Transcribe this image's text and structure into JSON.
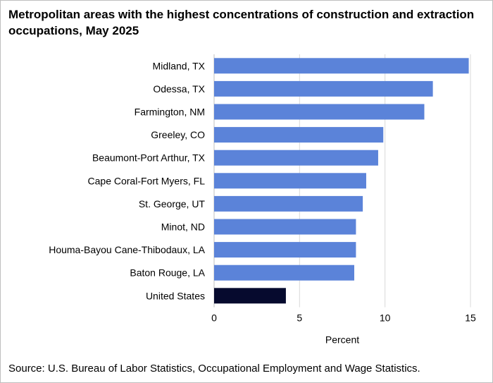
{
  "title": "Metropolitan areas with the highest concentrations of construction and extraction occupations, May 2025",
  "source": "Source: U.S. Bureau of Labor Statistics, Occupational Employment and Wage Statistics.",
  "colors": {
    "metro_bar": "#5b83d9",
    "us_bar": "#060a2e",
    "grid": "#d9d9d9",
    "axis": "#bfbfbf"
  },
  "chart_data": {
    "type": "bar",
    "orientation": "horizontal",
    "title": "Metropolitan areas with the highest concentrations of construction and extraction occupations, May 2025",
    "xlabel": "Percent",
    "ylabel": "",
    "xlim": [
      0,
      15
    ],
    "xticks": [
      0,
      5,
      10,
      15
    ],
    "grid": true,
    "categories": [
      "Midland, TX",
      "Odessa, TX",
      "Farmington, NM",
      "Greeley, CO",
      "Beaumont-Port Arthur, TX",
      "Cape Coral-Fort Myers, FL",
      "St. George, UT",
      "Minot, ND",
      "Houma-Bayou Cane-Thibodaux, LA",
      "Baton Rouge, LA",
      "United States"
    ],
    "values": [
      14.9,
      12.8,
      12.3,
      9.9,
      9.6,
      8.9,
      8.7,
      8.3,
      8.3,
      8.2,
      4.2
    ]
  }
}
